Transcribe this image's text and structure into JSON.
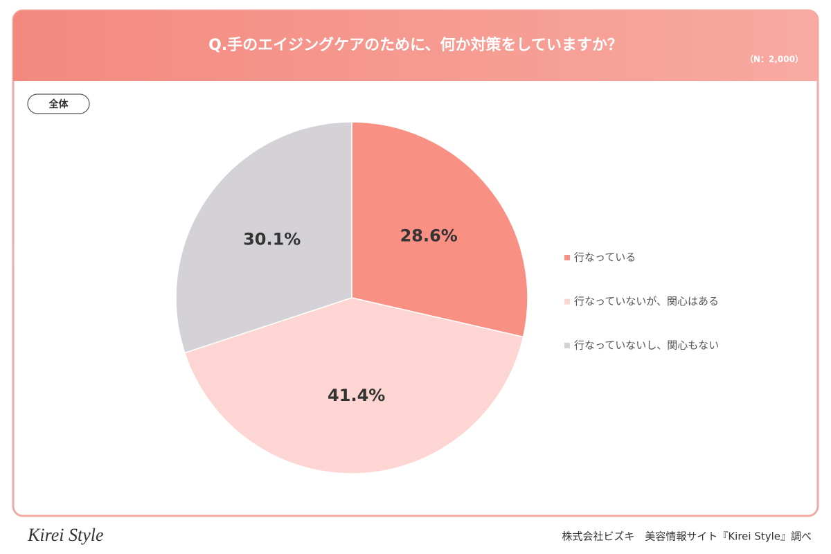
{
  "chart_data": {
    "type": "pie",
    "title": "Q.手のエイジングケアのために、何か対策をしていますか？",
    "subtitle": "（N：2,000）",
    "group_label": "全体",
    "categories": [
      "行なっている",
      "行なっていないが、関心はある",
      "行なっていないし、関心もない"
    ],
    "values": [
      28.6,
      41.4,
      30.1
    ],
    "value_labels": [
      "28.6%",
      "41.4%",
      "30.1%"
    ],
    "colors": [
      "#f99084",
      "#fdd5d3",
      "#d4d2d6"
    ],
    "legend": "right"
  },
  "footer": {
    "logo": "Kirei Style",
    "source": "株式会社ビズキ　美容情報サイト『Kirei Style』調べ"
  }
}
